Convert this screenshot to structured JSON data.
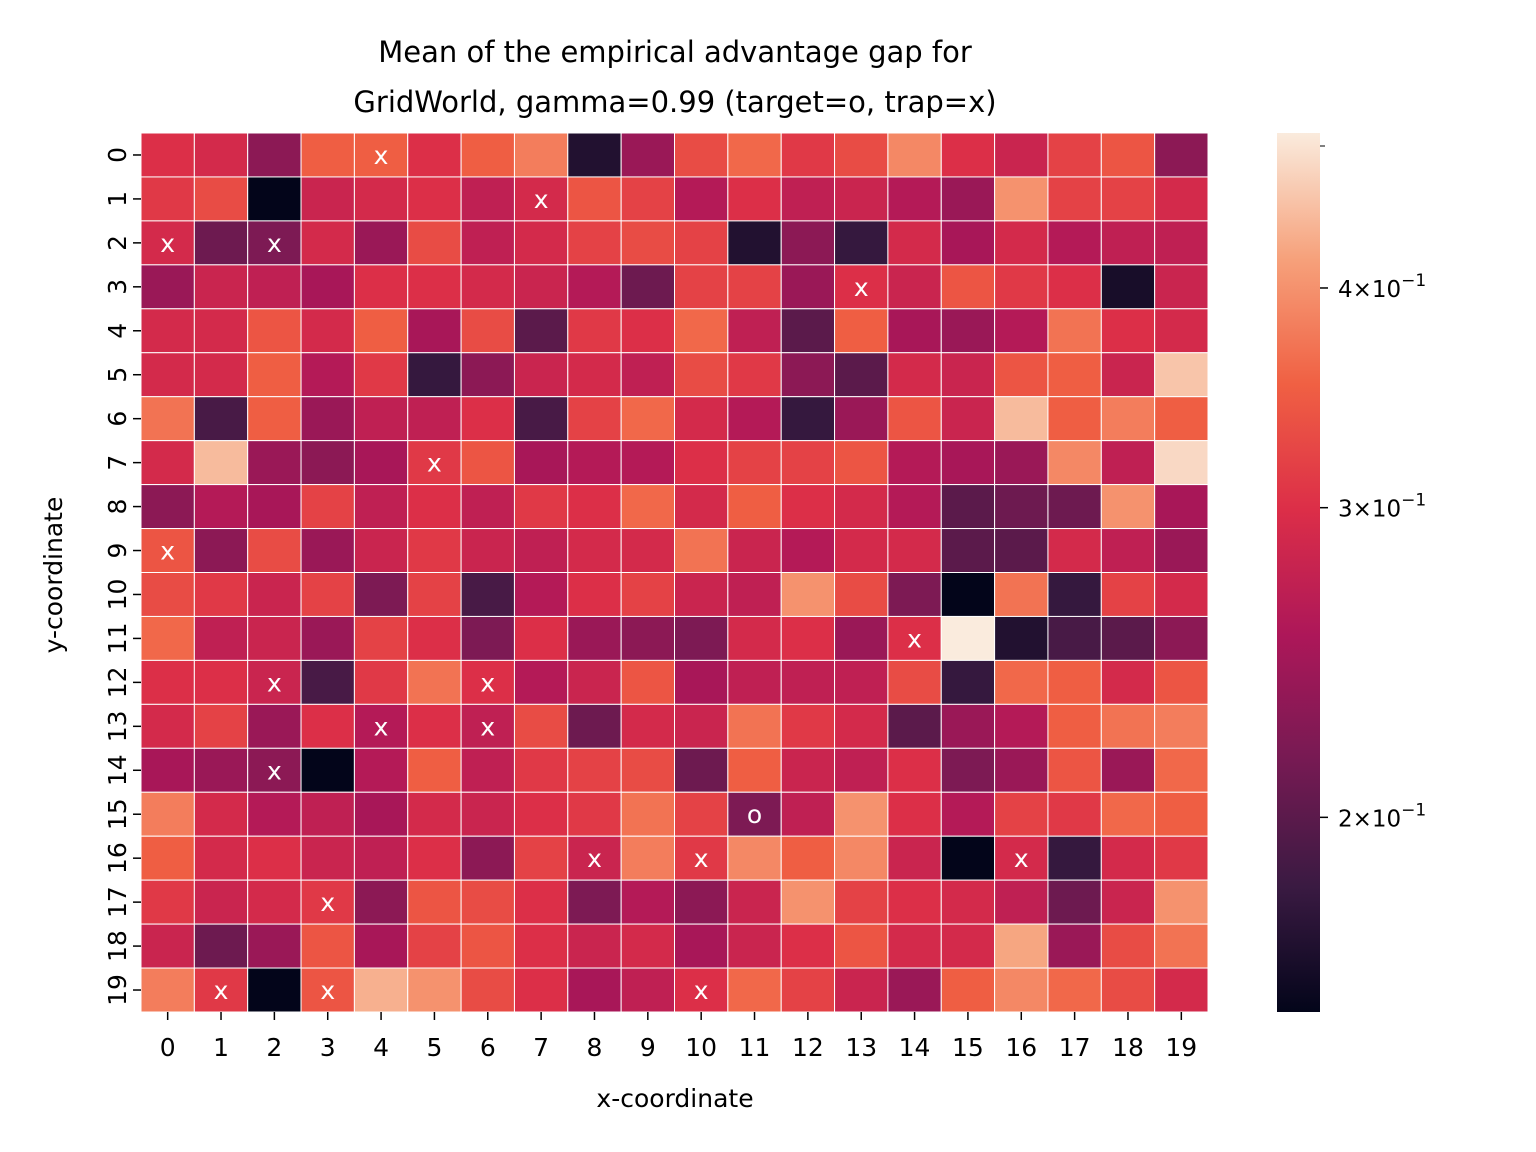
{
  "chart_data": {
    "type": "heatmap",
    "title": "Mean of the empirical advantage gap for\nGridWorld, gamma=0.99 (target=o, trap=x)",
    "title_lines": [
      "Mean of the empirical advantage gap for",
      "GridWorld, gamma=0.99 (target=o, trap=x)"
    ],
    "xlabel": "x-coordinate",
    "ylabel": "y-coordinate",
    "x_ticks": [
      "0",
      "1",
      "2",
      "3",
      "4",
      "5",
      "6",
      "7",
      "8",
      "9",
      "10",
      "11",
      "12",
      "13",
      "14",
      "15",
      "16",
      "17",
      "18",
      "19"
    ],
    "y_ticks": [
      "0",
      "1",
      "2",
      "3",
      "4",
      "5",
      "6",
      "7",
      "8",
      "9",
      "10",
      "11",
      "12",
      "13",
      "14",
      "15",
      "16",
      "17",
      "18",
      "19"
    ],
    "colorbar": {
      "scale": "log",
      "range": [
        0.155,
        0.49
      ],
      "ticks": [
        {
          "value": 0.4,
          "label_mantissa": "4",
          "label_exponent": "−1"
        },
        {
          "value": 0.3,
          "label_mantissa": "3",
          "label_exponent": "−1"
        },
        {
          "value": 0.2,
          "label_mantissa": "2",
          "label_exponent": "−1"
        }
      ],
      "colormap": "rocket",
      "colormap_stops": [
        "#03051a",
        "#3a1a42",
        "#761a53",
        "#ad1759",
        "#dc2e48",
        "#f06043",
        "#f6a17b",
        "#faebdd"
      ]
    },
    "values": [
      [
        0.3,
        0.29,
        0.23,
        0.35,
        0.35,
        0.3,
        0.35,
        0.38,
        0.17,
        0.24,
        0.33,
        0.36,
        0.31,
        0.33,
        0.39,
        0.3,
        0.28,
        0.32,
        0.34,
        0.23
      ],
      [
        0.31,
        0.33,
        0.155,
        0.28,
        0.29,
        0.3,
        0.27,
        0.29,
        0.34,
        0.32,
        0.26,
        0.3,
        0.27,
        0.28,
        0.26,
        0.24,
        0.4,
        0.32,
        0.32,
        0.29
      ],
      [
        0.29,
        0.21,
        0.22,
        0.29,
        0.24,
        0.33,
        0.27,
        0.29,
        0.32,
        0.33,
        0.32,
        0.17,
        0.23,
        0.18,
        0.29,
        0.25,
        0.29,
        0.26,
        0.27,
        0.27
      ],
      [
        0.24,
        0.28,
        0.27,
        0.25,
        0.3,
        0.3,
        0.29,
        0.28,
        0.26,
        0.21,
        0.32,
        0.32,
        0.24,
        0.3,
        0.28,
        0.34,
        0.31,
        0.3,
        0.165,
        0.28
      ],
      [
        0.29,
        0.29,
        0.34,
        0.29,
        0.35,
        0.25,
        0.33,
        0.2,
        0.31,
        0.3,
        0.36,
        0.27,
        0.2,
        0.35,
        0.25,
        0.24,
        0.26,
        0.37,
        0.3,
        0.29
      ],
      [
        0.29,
        0.29,
        0.35,
        0.26,
        0.31,
        0.18,
        0.23,
        0.28,
        0.29,
        0.27,
        0.33,
        0.31,
        0.23,
        0.2,
        0.29,
        0.28,
        0.34,
        0.35,
        0.28,
        0.45
      ],
      [
        0.37,
        0.19,
        0.35,
        0.24,
        0.27,
        0.27,
        0.3,
        0.19,
        0.32,
        0.36,
        0.29,
        0.26,
        0.18,
        0.24,
        0.34,
        0.28,
        0.44,
        0.35,
        0.38,
        0.35
      ],
      [
        0.29,
        0.44,
        0.24,
        0.23,
        0.25,
        0.31,
        0.34,
        0.25,
        0.26,
        0.26,
        0.3,
        0.32,
        0.32,
        0.34,
        0.26,
        0.25,
        0.24,
        0.39,
        0.27,
        0.47
      ],
      [
        0.23,
        0.26,
        0.25,
        0.32,
        0.27,
        0.3,
        0.27,
        0.31,
        0.3,
        0.36,
        0.29,
        0.35,
        0.3,
        0.29,
        0.26,
        0.2,
        0.21,
        0.21,
        0.4,
        0.25
      ],
      [
        0.34,
        0.23,
        0.33,
        0.24,
        0.28,
        0.31,
        0.28,
        0.27,
        0.29,
        0.29,
        0.37,
        0.28,
        0.26,
        0.29,
        0.29,
        0.2,
        0.2,
        0.29,
        0.27,
        0.24
      ],
      [
        0.33,
        0.31,
        0.28,
        0.32,
        0.22,
        0.32,
        0.19,
        0.26,
        0.3,
        0.32,
        0.28,
        0.27,
        0.4,
        0.33,
        0.22,
        0.155,
        0.37,
        0.18,
        0.32,
        0.29
      ],
      [
        0.36,
        0.27,
        0.28,
        0.24,
        0.32,
        0.3,
        0.22,
        0.3,
        0.24,
        0.23,
        0.22,
        0.29,
        0.3,
        0.24,
        0.3,
        0.49,
        0.17,
        0.19,
        0.2,
        0.23
      ],
      [
        0.3,
        0.3,
        0.28,
        0.19,
        0.31,
        0.37,
        0.3,
        0.26,
        0.28,
        0.34,
        0.25,
        0.27,
        0.27,
        0.27,
        0.33,
        0.18,
        0.36,
        0.35,
        0.29,
        0.34
      ],
      [
        0.29,
        0.32,
        0.24,
        0.3,
        0.26,
        0.3,
        0.27,
        0.33,
        0.21,
        0.29,
        0.28,
        0.37,
        0.31,
        0.29,
        0.2,
        0.24,
        0.26,
        0.35,
        0.37,
        0.38
      ],
      [
        0.25,
        0.24,
        0.23,
        0.155,
        0.26,
        0.35,
        0.27,
        0.31,
        0.32,
        0.33,
        0.21,
        0.35,
        0.28,
        0.27,
        0.3,
        0.22,
        0.24,
        0.34,
        0.24,
        0.36
      ],
      [
        0.38,
        0.29,
        0.26,
        0.27,
        0.25,
        0.29,
        0.28,
        0.3,
        0.31,
        0.37,
        0.32,
        0.22,
        0.27,
        0.4,
        0.3,
        0.26,
        0.32,
        0.31,
        0.36,
        0.35
      ],
      [
        0.35,
        0.29,
        0.3,
        0.28,
        0.27,
        0.3,
        0.23,
        0.32,
        0.28,
        0.38,
        0.31,
        0.39,
        0.35,
        0.39,
        0.28,
        0.155,
        0.29,
        0.18,
        0.29,
        0.31
      ],
      [
        0.31,
        0.28,
        0.29,
        0.31,
        0.23,
        0.34,
        0.33,
        0.3,
        0.22,
        0.26,
        0.23,
        0.28,
        0.4,
        0.32,
        0.3,
        0.29,
        0.27,
        0.21,
        0.28,
        0.4
      ],
      [
        0.28,
        0.21,
        0.24,
        0.34,
        0.25,
        0.32,
        0.34,
        0.3,
        0.28,
        0.29,
        0.25,
        0.28,
        0.3,
        0.34,
        0.29,
        0.29,
        0.42,
        0.24,
        0.33,
        0.37
      ],
      [
        0.38,
        0.31,
        0.155,
        0.34,
        0.43,
        0.4,
        0.33,
        0.3,
        0.25,
        0.27,
        0.3,
        0.36,
        0.32,
        0.28,
        0.24,
        0.35,
        0.39,
        0.36,
        0.33,
        0.29
      ]
    ],
    "markers": [
      {
        "x": 4,
        "y": 0,
        "label": "x"
      },
      {
        "x": 7,
        "y": 1,
        "label": "x"
      },
      {
        "x": 0,
        "y": 2,
        "label": "x"
      },
      {
        "x": 2,
        "y": 2,
        "label": "x"
      },
      {
        "x": 13,
        "y": 3,
        "label": "x"
      },
      {
        "x": 5,
        "y": 7,
        "label": "x"
      },
      {
        "x": 0,
        "y": 9,
        "label": "x"
      },
      {
        "x": 14,
        "y": 11,
        "label": "x"
      },
      {
        "x": 2,
        "y": 12,
        "label": "x"
      },
      {
        "x": 6,
        "y": 12,
        "label": "x"
      },
      {
        "x": 4,
        "y": 13,
        "label": "x"
      },
      {
        "x": 6,
        "y": 13,
        "label": "x"
      },
      {
        "x": 2,
        "y": 14,
        "label": "x"
      },
      {
        "x": 11,
        "y": 15,
        "label": "o"
      },
      {
        "x": 8,
        "y": 16,
        "label": "x"
      },
      {
        "x": 10,
        "y": 16,
        "label": "x"
      },
      {
        "x": 16,
        "y": 16,
        "label": "x"
      },
      {
        "x": 3,
        "y": 17,
        "label": "x"
      },
      {
        "x": 1,
        "y": 19,
        "label": "x"
      },
      {
        "x": 3,
        "y": 19,
        "label": "x"
      },
      {
        "x": 10,
        "y": 19,
        "label": "x"
      }
    ]
  }
}
